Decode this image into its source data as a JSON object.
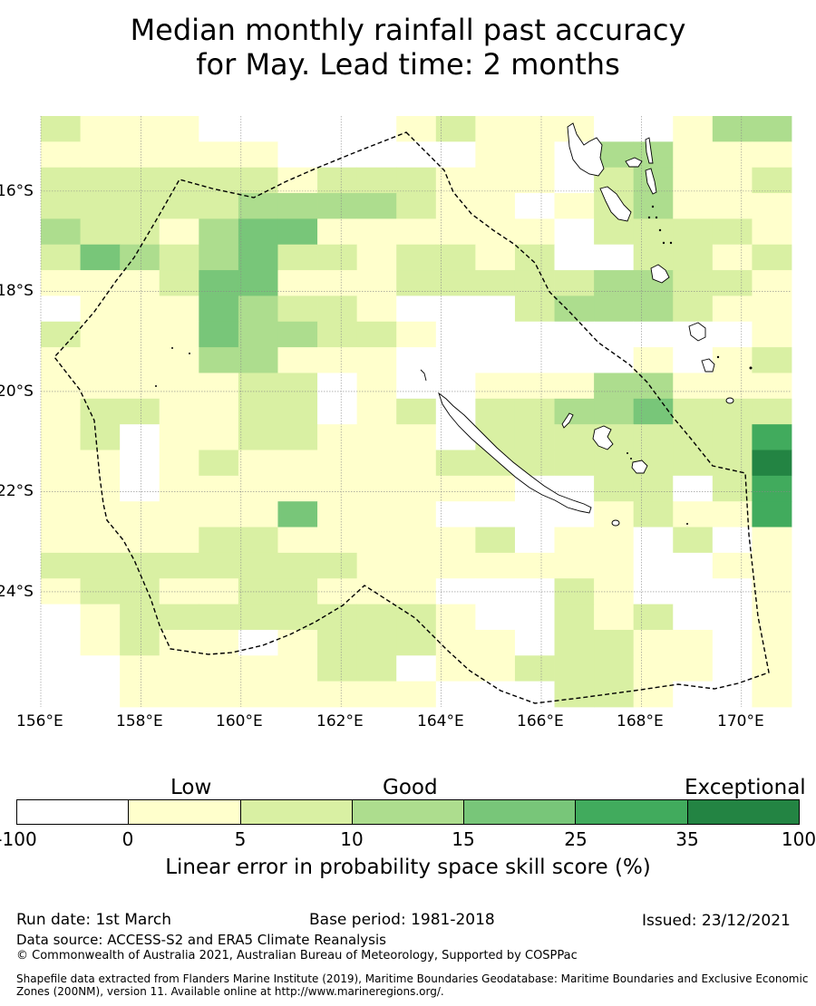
{
  "title": {
    "line1": "Median monthly rainfall past accuracy",
    "line2": "for May. Lead time: 2 months"
  },
  "map": {
    "lon_labels": [
      "156°E",
      "158°E",
      "160°E",
      "162°E",
      "164°E",
      "166°E",
      "168°E",
      "170°E"
    ],
    "lat_labels": [
      "16°S",
      "18°S",
      "20°S",
      "22°S",
      "24°S"
    ],
    "lon_range": [
      156,
      171
    ],
    "lat_range": [
      -14.5,
      -26.3
    ],
    "grid_resolution_deg": 0.833,
    "grid_categories": [
      "2111000001211100133",
      "1111110000011033111",
      "2222221222111023112",
      "2222233332110123111",
      "3221344111111022221",
      "2432342212212002212",
      "1112441112222233221",
      "0111432210002333211",
      "2111433221000000001",
      "1111331110000001012",
      "1111122010011133111",
      "1221122012022334222",
      "1201122111022222225",
      "1101211111222222226",
      "1101111111110022025",
      "1111114111000012115",
      "1111221111120110201",
      "2222222211111110011",
      "1221122111000210001",
      "0122222222100212001",
      "0121101222110221101",
      "0011111220112221101",
      "0011111111000221001"
    ],
    "eez_label": "EEZ boundary"
  },
  "colors": {
    "cat0": "#ffffff",
    "cat1": "#ffffcc",
    "cat2": "#d9f0a3",
    "cat3": "#addd8e",
    "cat4": "#78c679",
    "cat5": "#41ab5d",
    "cat6": "#238443"
  },
  "colorbar": {
    "categories": [
      "Low",
      "Good",
      "Exceptional"
    ],
    "ticks": [
      "-100",
      "0",
      "5",
      "10",
      "15",
      "25",
      "35",
      "100"
    ],
    "title": "Linear error in probability space skill score (%)"
  },
  "footer": {
    "run_date": "Run date: 1st March",
    "base_period": "Base period: 1981-2018",
    "issued": "Issued: 23/12/2021",
    "data_source": "Data source: ACCESS-S2 and ERA5 Climate Reanalysis",
    "copyright": "© Commonwealth of Australia 2021, Australian Bureau of Meteorology, Supported by COSPPac",
    "shapefile": "Shapefile data extracted from Flanders Marine Institute (2019), Maritime Boundaries Geodatabase: Maritime Boundaries and Exclusive Economic Zones (200NM), version 11. Available online at http://www.marineregions.org/."
  }
}
